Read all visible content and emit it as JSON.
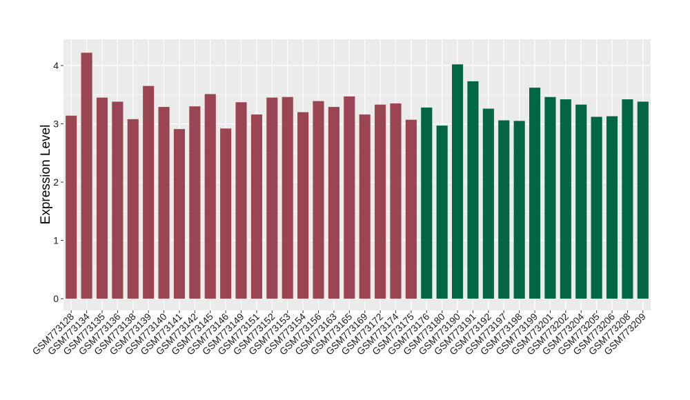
{
  "chart_data": {
    "type": "bar",
    "title": "",
    "xlabel": "",
    "ylabel": "Expression Level",
    "ylim": [
      -0.2,
      4.45
    ],
    "yticks": [
      0,
      1,
      2,
      3,
      4
    ],
    "grid": true,
    "legend": "none",
    "categories": [
      "GSM773128",
      "GSM773134",
      "GSM773135",
      "GSM773136",
      "GSM773138",
      "GSM773139",
      "GSM773140",
      "GSM773141",
      "GSM773142",
      "GSM773145",
      "GSM773146",
      "GSM773149",
      "GSM773151",
      "GSM773152",
      "GSM773153",
      "GSM773154",
      "GSM773156",
      "GSM773163",
      "GSM773165",
      "GSM773169",
      "GSM773172",
      "GSM773174",
      "GSM773175",
      "GSM773176",
      "GSM773180",
      "GSM773190",
      "GSM773191",
      "GSM773192",
      "GSM773197",
      "GSM773198",
      "GSM773199",
      "GSM773201",
      "GSM773202",
      "GSM773204",
      "GSM773205",
      "GSM773206",
      "GSM773208",
      "GSM773209"
    ],
    "values": [
      3.14,
      4.22,
      3.45,
      3.38,
      3.08,
      3.65,
      3.29,
      2.91,
      3.3,
      3.51,
      2.92,
      3.37,
      3.16,
      3.45,
      3.46,
      3.2,
      3.39,
      3.29,
      3.47,
      3.16,
      3.33,
      3.35,
      3.07,
      3.28,
      2.97,
      4.02,
      3.73,
      3.26,
      3.06,
      3.05,
      3.62,
      3.46,
      3.42,
      3.33,
      3.12,
      3.13,
      3.42,
      3.38
    ],
    "groups": [
      "a",
      "a",
      "a",
      "a",
      "a",
      "a",
      "a",
      "a",
      "a",
      "a",
      "a",
      "a",
      "a",
      "a",
      "a",
      "a",
      "a",
      "a",
      "a",
      "a",
      "a",
      "a",
      "a",
      "b",
      "b",
      "b",
      "b",
      "b",
      "b",
      "b",
      "b",
      "b",
      "b",
      "b",
      "b",
      "b",
      "b",
      "b"
    ],
    "colors": {
      "a": "#9b4452",
      "b": "#006644"
    },
    "panel_background": "#ebebeb",
    "grid_color": "#ffffff"
  }
}
